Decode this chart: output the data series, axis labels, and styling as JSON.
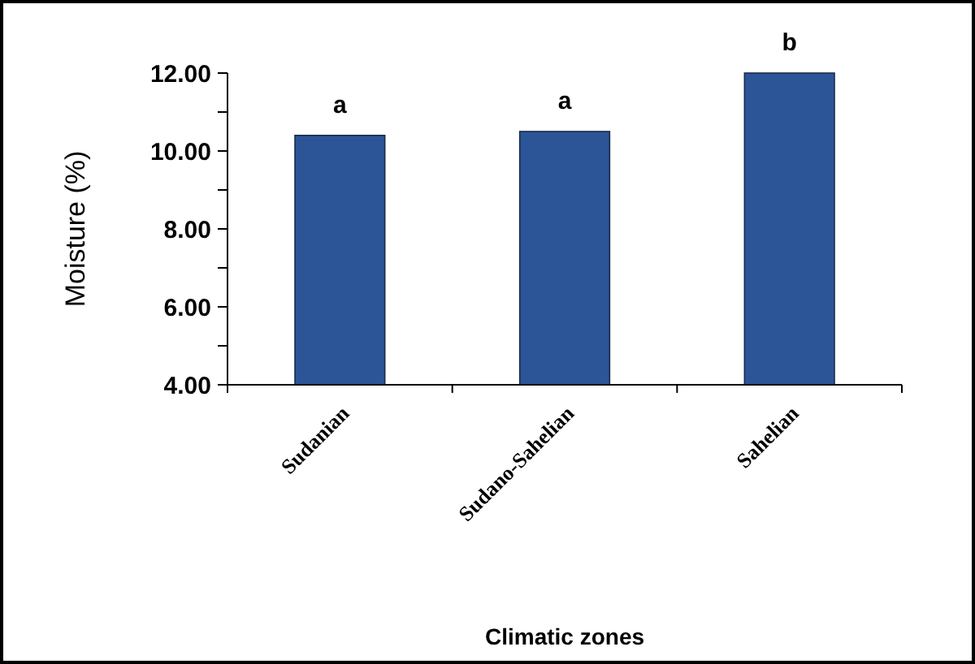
{
  "chart_data": {
    "type": "bar",
    "xlabel": "Climatic zones",
    "ylabel": "Moisture (%)",
    "categories": [
      "Sudanian",
      "Sudano-Sahelian",
      "Sahelian"
    ],
    "values": [
      10.4,
      10.5,
      12.0
    ],
    "color": "#2b5597",
    "ylim": [
      4,
      12
    ],
    "yticks": [
      {
        "value": 4,
        "label": "4.00"
      },
      {
        "value": 5,
        "label": null
      },
      {
        "value": 6,
        "label": "6.00"
      },
      {
        "value": 7,
        "label": null
      },
      {
        "value": 8,
        "label": "8.00"
      },
      {
        "value": 9,
        "label": null
      },
      {
        "value": 10,
        "label": "10.00"
      },
      {
        "value": 11,
        "label": null
      },
      {
        "value": 12,
        "label": "12.00"
      }
    ],
    "annotations": [
      {
        "text": "a",
        "x": "Sudanian",
        "y": 10.4
      },
      {
        "text": "a",
        "x": "Sudano-Sahelian",
        "y": 10.5
      },
      {
        "text": "b",
        "x": "Sahelian",
        "y": 12.0
      }
    ]
  }
}
